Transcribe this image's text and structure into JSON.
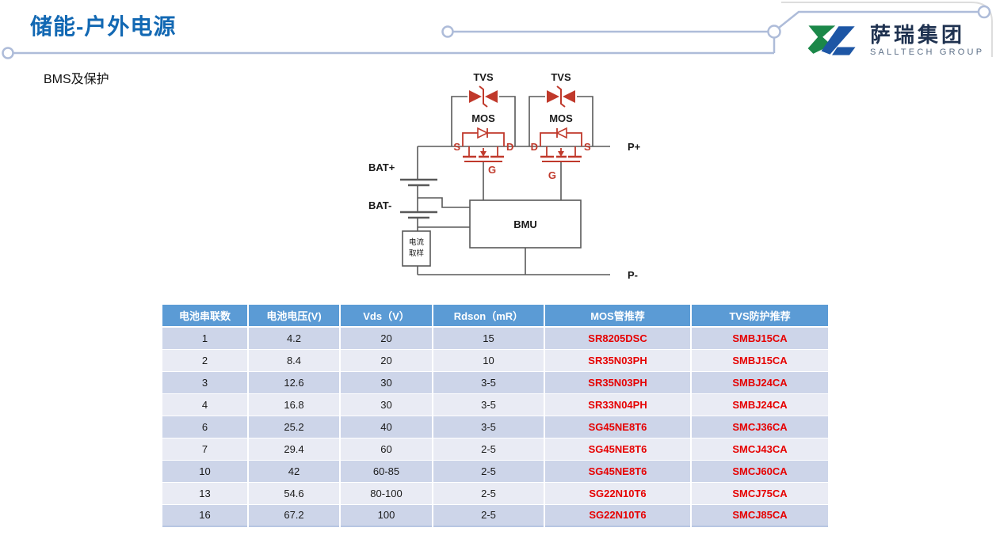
{
  "header": {
    "title": "储能-户外电源",
    "subtitle": "BMS及保护"
  },
  "logo": {
    "name_cn": "萨瑞集团",
    "name_en": "SALLTECH GROUP"
  },
  "colors": {
    "title_blue": "#1268B3",
    "table_header_bg": "#5B9BD5",
    "table_row_dark": "#CDD5E9",
    "table_row_light": "#E9EBF4",
    "part_number_red": "#E60000",
    "circuit_symbol_red": "#C0392B",
    "circuit_line_gray": "#595959",
    "connector_line": "#AEBCD9",
    "logo_green": "#1B8849",
    "logo_blue": "#1D56A5"
  },
  "circuit": {
    "labels": {
      "tvs1": "TVS",
      "tvs2": "TVS",
      "mos1": "MOS",
      "mos2": "MOS",
      "s1": "S",
      "d1": "D",
      "g1": "G",
      "d2": "D",
      "s2": "S",
      "g2": "G",
      "bat_plus": "BAT+",
      "bat_minus": "BAT-",
      "p_plus": "P+",
      "p_minus": "P-",
      "bmu": "BMU",
      "current_sample_line1": "电流",
      "current_sample_line2": "取样"
    }
  },
  "table": {
    "headers": [
      "电池串联数",
      "电池电压(V)",
      "Vds（V）",
      "Rdson（mR）",
      "MOS管推荐",
      "TVS防护推荐"
    ],
    "rows": [
      [
        "1",
        "4.2",
        "20",
        "15",
        "SR8205DSC",
        "SMBJ15CA"
      ],
      [
        "2",
        "8.4",
        "20",
        "10",
        "SR35N03PH",
        "SMBJ15CA"
      ],
      [
        "3",
        "12.6",
        "30",
        "3-5",
        "SR35N03PH",
        "SMBJ24CA"
      ],
      [
        "4",
        "16.8",
        "30",
        "3-5",
        "SR33N04PH",
        "SMBJ24CA"
      ],
      [
        "6",
        "25.2",
        "40",
        "3-5",
        "SG45NE8T6",
        "SMCJ36CA"
      ],
      [
        "7",
        "29.4",
        "60",
        "2-5",
        "SG45NE8T6",
        "SMCJ43CA"
      ],
      [
        "10",
        "42",
        "60-85",
        "2-5",
        "SG45NE8T6",
        "SMCJ60CA"
      ],
      [
        "13",
        "54.6",
        "80-100",
        "2-5",
        "SG22N10T6",
        "SMCJ75CA"
      ],
      [
        "16",
        "67.2",
        "100",
        "2-5",
        "SG22N10T6",
        "SMCJ85CA"
      ]
    ]
  }
}
